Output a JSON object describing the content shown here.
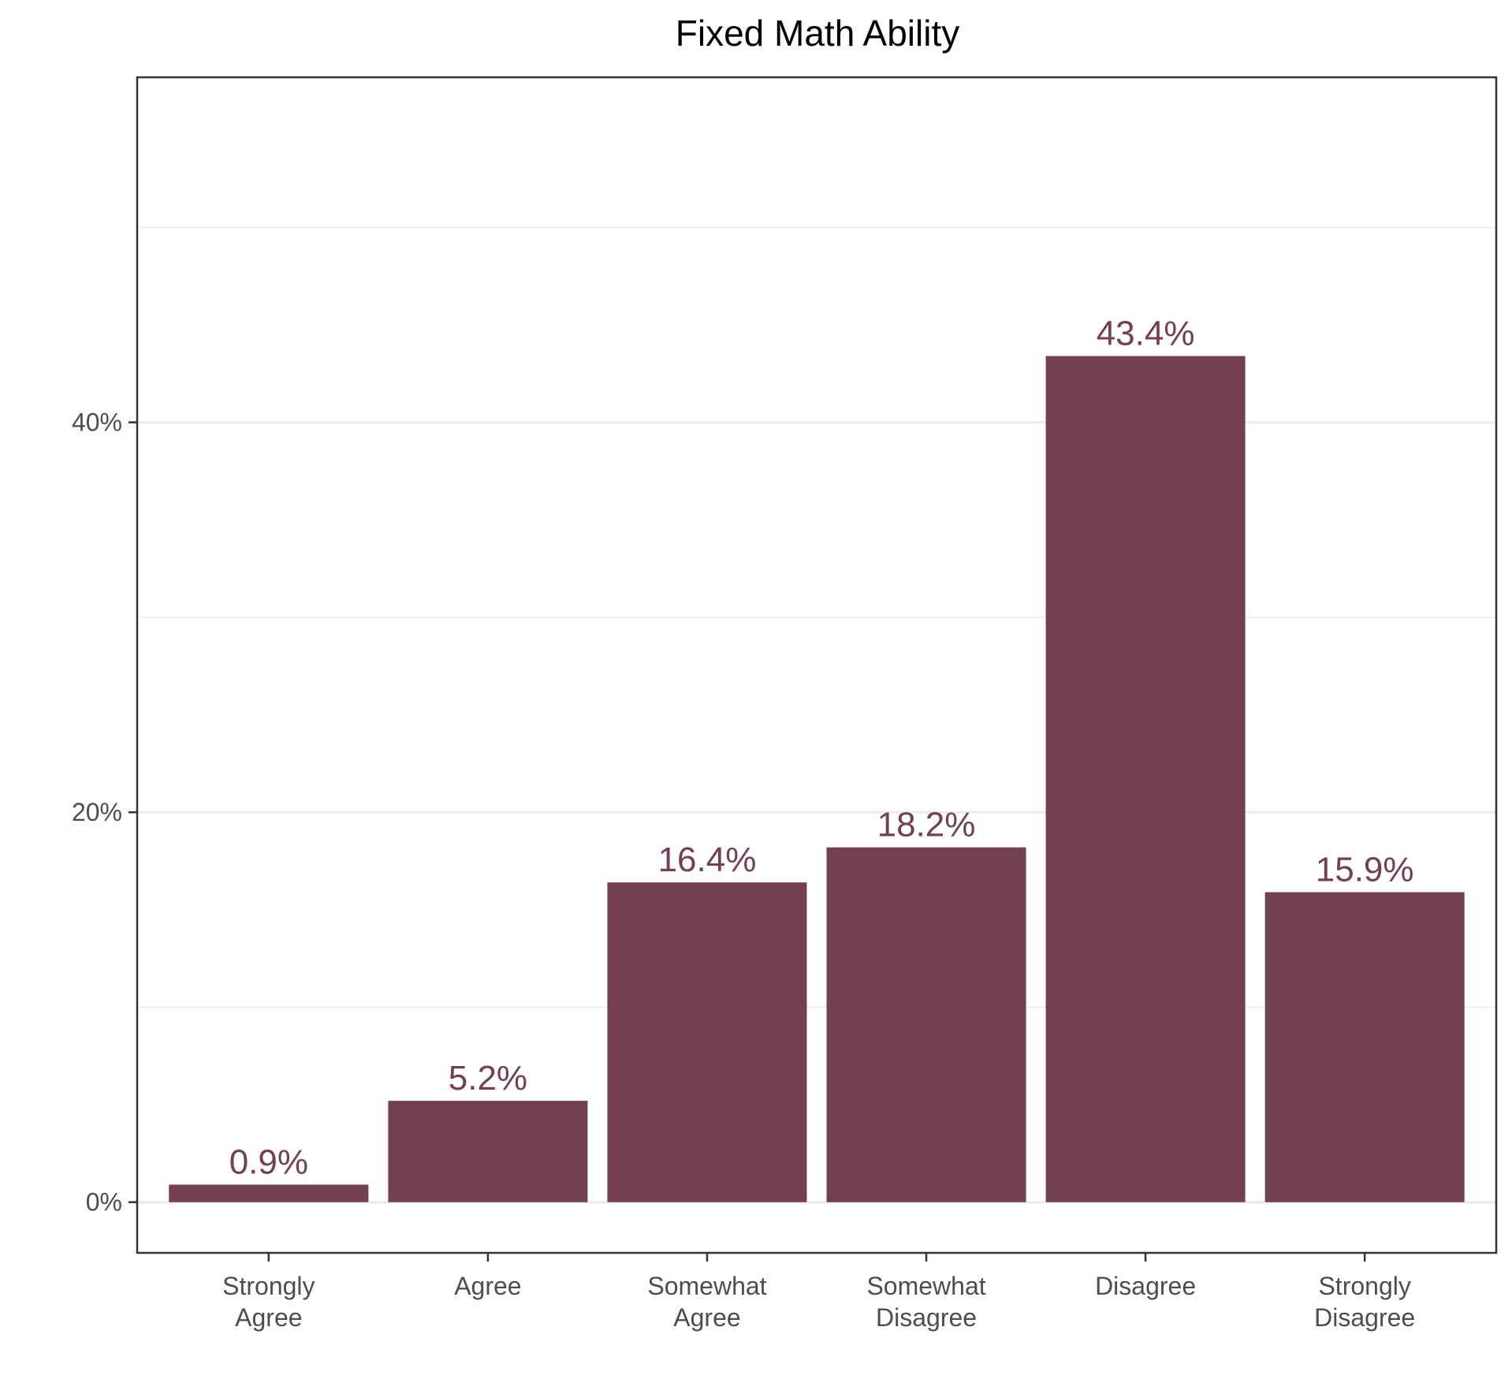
{
  "chart_data": {
    "type": "bar",
    "title": "Fixed Math Ability",
    "categories": [
      [
        "Strongly",
        "Agree"
      ],
      [
        "Agree"
      ],
      [
        "Somewhat",
        "Agree"
      ],
      [
        "Somewhat",
        "Disagree"
      ],
      [
        "Disagree"
      ],
      [
        "Strongly",
        "Disagree"
      ]
    ],
    "values": [
      0.9,
      5.2,
      16.4,
      18.2,
      43.4,
      15.9
    ],
    "value_labels": [
      "0.9%",
      "5.2%",
      "16.4%",
      "18.2%",
      "43.4%",
      "15.9%"
    ],
    "y_ticks": [
      {
        "value": 0,
        "label": "0%"
      },
      {
        "value": 20,
        "label": "20%"
      },
      {
        "value": 40,
        "label": "40%"
      }
    ],
    "y_minor_gridlines": [
      10,
      30,
      50
    ],
    "ylim": [
      -2.6,
      57.7
    ],
    "xlabel": "",
    "ylabel": "",
    "grid": true,
    "legend": "none",
    "colors": {
      "bar": "#723f53",
      "grid": "#ebebeb",
      "axis": "#333333",
      "tick_text": "#4d4d4d"
    }
  }
}
